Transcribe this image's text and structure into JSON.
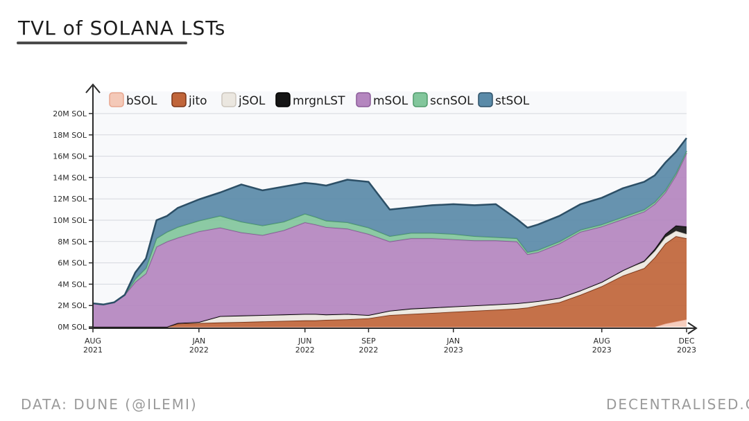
{
  "title": "TVL of SOLANA LSTs",
  "source": "DATA: DUNE (@ILEMI)",
  "brand": "DECENTRALISED.CO",
  "chart_data": {
    "type": "area",
    "stacked": true,
    "title": "TVL of SOLANA LSTs",
    "xlabel": "",
    "ylabel": "",
    "ylim": [
      0,
      20
    ],
    "y_ticks": [
      0,
      2,
      4,
      6,
      8,
      10,
      12,
      14,
      16,
      18,
      20
    ],
    "y_tick_labels": [
      "0M SOL",
      "2M SOL",
      "4M SOL",
      "6M SOL",
      "8M SOL",
      "10M SOL",
      "12M SOL",
      "14M SOL",
      "16M SOL",
      "18M SOL",
      "20M SOL"
    ],
    "x_ticks": [
      {
        "t": 0,
        "month": "AUG",
        "year": "2021"
      },
      {
        "t": 5,
        "month": "JAN",
        "year": "2022"
      },
      {
        "t": 10,
        "month": "JUN",
        "year": "2022"
      },
      {
        "t": 13,
        "month": "SEP",
        "year": "2022"
      },
      {
        "t": 17,
        "month": "JAN",
        "year": "2023"
      },
      {
        "t": 24,
        "month": "AUG",
        "year": "2023"
      },
      {
        "t": 28,
        "month": "DEC",
        "year": "2023"
      }
    ],
    "x": [
      0,
      0.5,
      1,
      1.5,
      2,
      2.5,
      3,
      3.5,
      4,
      5,
      6,
      7,
      8,
      9,
      10,
      10.5,
      11,
      12,
      13,
      14,
      15,
      16,
      17,
      18,
      19,
      20,
      20.5,
      21,
      22,
      23,
      24,
      25,
      26,
      26.5,
      27,
      27.5,
      28
    ],
    "legend_position": "top",
    "series": [
      {
        "name": "bSOL",
        "color": "#f4c9b8",
        "values": [
          0,
          0,
          0,
          0,
          0,
          0,
          0,
          0,
          0,
          0,
          0,
          0,
          0,
          0,
          0,
          0,
          0,
          0,
          0,
          0,
          0,
          0,
          0,
          0,
          0,
          0,
          0,
          0,
          0,
          0,
          0,
          0,
          0,
          0,
          0.3,
          0.5,
          0.7
        ]
      },
      {
        "name": "jito",
        "color": "#c0653a",
        "values": [
          0,
          0,
          0,
          0,
          0,
          0,
          0,
          0,
          0.3,
          0.35,
          0.4,
          0.45,
          0.5,
          0.55,
          0.6,
          0.6,
          0.65,
          0.7,
          0.8,
          1.1,
          1.2,
          1.3,
          1.4,
          1.5,
          1.6,
          1.7,
          1.8,
          2.0,
          2.3,
          3.0,
          3.8,
          4.8,
          5.5,
          6.5,
          7.5,
          8.0,
          7.6
        ]
      },
      {
        "name": "jSOL",
        "color": "#ebe7e0",
        "values": [
          0,
          0,
          0,
          0,
          0,
          0,
          0,
          0,
          0.05,
          0.1,
          0.6,
          0.6,
          0.6,
          0.6,
          0.6,
          0.6,
          0.5,
          0.5,
          0.3,
          0.4,
          0.5,
          0.5,
          0.5,
          0.5,
          0.5,
          0.5,
          0.5,
          0.4,
          0.4,
          0.4,
          0.4,
          0.5,
          0.6,
          0.6,
          0.6,
          0.5,
          0.4
        ]
      },
      {
        "name": "mrgnLST",
        "color": "#151515",
        "values": [
          0,
          0,
          0,
          0,
          0,
          0,
          0,
          0,
          0,
          0,
          0,
          0,
          0,
          0,
          0,
          0,
          0,
          0,
          0,
          0,
          0,
          0,
          0,
          0,
          0,
          0,
          0,
          0,
          0,
          0,
          0,
          0,
          0.1,
          0.2,
          0.3,
          0.5,
          0.7
        ]
      },
      {
        "name": "mSOL",
        "color": "#b486bf",
        "values": [
          2.2,
          2.1,
          2.3,
          3.0,
          4.2,
          5.0,
          7.5,
          8.0,
          8.0,
          8.5,
          8.3,
          7.8,
          7.5,
          7.9,
          8.6,
          8.4,
          8.2,
          8.0,
          7.6,
          6.5,
          6.6,
          6.5,
          6.3,
          6.1,
          6.0,
          5.8,
          4.5,
          4.6,
          5.1,
          5.5,
          5.2,
          4.8,
          4.6,
          4.2,
          3.9,
          4.7,
          6.9
        ]
      },
      {
        "name": "scnSOL",
        "color": "#82c69c",
        "values": [
          0,
          0,
          0,
          0,
          0.3,
          0.5,
          0.8,
          0.9,
          1.0,
          1.0,
          1.1,
          1.0,
          0.9,
          0.8,
          0.8,
          0.7,
          0.6,
          0.6,
          0.6,
          0.5,
          0.5,
          0.5,
          0.5,
          0.4,
          0.3,
          0.3,
          0.2,
          0.2,
          0.2,
          0.2,
          0.2,
          0.2,
          0.2,
          0.2,
          0.2,
          0.2,
          0.2
        ]
      },
      {
        "name": "stSOL",
        "color": "#5a8aa8",
        "values": [
          0,
          0,
          0,
          0,
          0.6,
          0.9,
          1.7,
          1.5,
          1.8,
          2.0,
          2.2,
          3.5,
          3.3,
          3.3,
          2.9,
          3.1,
          3.3,
          4.0,
          4.3,
          2.5,
          2.4,
          2.6,
          2.8,
          2.9,
          3.1,
          1.8,
          2.3,
          2.4,
          2.4,
          2.4,
          2.5,
          2.7,
          2.6,
          2.5,
          2.6,
          2.0,
          1.2
        ]
      }
    ]
  }
}
